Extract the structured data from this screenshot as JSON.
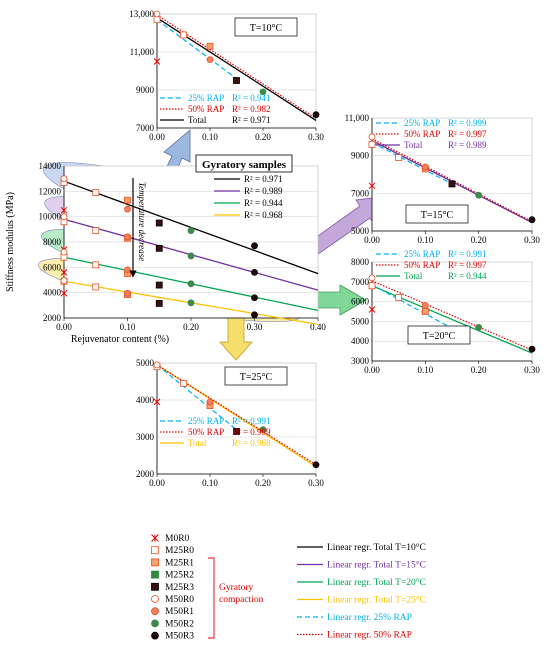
{
  "colors": {
    "black": "#000000",
    "purple": "#7030a0",
    "green": "#00a550",
    "yellow": "#ffc000",
    "cyan": "#00b0f0",
    "red": "#e00000",
    "m25_fill": "#f4a06a",
    "m25_edge": "#e85020",
    "m25r2_fill": "#2e8b3e",
    "m25r3_fill": "#3a1010",
    "m50r1_fill": "#f08060",
    "m50r2_fill": "#3d8a4a",
    "m50r3_fill": "#200808",
    "ell_blue": "#9db8e0",
    "ell_purple": "#c4a8dc",
    "ell_green": "#7fd89a",
    "ell_yellow": "#f6de6a"
  },
  "main": {
    "title": "Gyratory samples",
    "ylabel": "Stiffness modulus (MPa)",
    "xlabel": "Rejuvenator content (%)",
    "annotation": "Temperature decrease",
    "r2": [
      "R² = 0.971",
      "R² = 0.989",
      "R² = 0.944",
      "R² = 0.968"
    ]
  },
  "legend": {
    "markers": [
      "M0R0",
      "M25R0",
      "M25R1",
      "M25R2",
      "M25R3",
      "M50R0",
      "M50R1",
      "M50R2",
      "M50R3"
    ],
    "gyratory_label_1": "Gyratory",
    "gyratory_label_2": "compaction",
    "lines": [
      "Linear regr. Total T=10°C",
      "Linear regr. Total T=15°C",
      "Linear regr. Total T=20°C",
      "Linear regr. Total T=25°C",
      "Linear regr. 25% RAP",
      "Linear regr. 50% RAP"
    ]
  },
  "chart_data": [
    {
      "id": "main",
      "type": "scatter",
      "xlabel": "Rejuvenator content (%)",
      "ylabel": "Stiffness modulus (MPa)",
      "xlim": [
        0.0,
        0.4
      ],
      "ylim": [
        2000,
        14000
      ],
      "xticks": [
        "0.00",
        "0.10",
        "0.20",
        "0.30",
        "0.40"
      ],
      "yticks": [
        "2000",
        "4000",
        "6000",
        "8000",
        "10000",
        "12000",
        "14000"
      ],
      "series": [
        {
          "name": "T=10°C",
          "r2": 0.971,
          "fit": [
            [
              0,
              12800
            ],
            [
              0.4,
              5500
            ]
          ],
          "points": [
            [
              "M0R0",
              0,
              10500
            ],
            [
              "M25R0",
              0,
              12700
            ],
            [
              "M25R0",
              0.05,
              11900
            ],
            [
              "M25R1",
              0.1,
              11300
            ],
            [
              "M25R3",
              0.15,
              9500
            ],
            [
              "M50R0",
              0,
              13000
            ],
            [
              "M50R1",
              0.1,
              10600
            ],
            [
              "M50R2",
              0.2,
              8900
            ],
            [
              "M50R3",
              0.3,
              7700
            ]
          ]
        },
        {
          "name": "T=15°C",
          "r2": 0.989,
          "fit": [
            [
              0,
              9800
            ],
            [
              0.4,
              4200
            ]
          ],
          "points": [
            [
              "M0R0",
              0,
              7400
            ],
            [
              "M25R0",
              0,
              9600
            ],
            [
              "M25R0",
              0.05,
              8900
            ],
            [
              "M25R1",
              0.1,
              8300
            ],
            [
              "M25R3",
              0.15,
              7500
            ],
            [
              "M50R0",
              0,
              10000
            ],
            [
              "M50R1",
              0.1,
              8400
            ],
            [
              "M50R2",
              0.2,
              6900
            ],
            [
              "M50R3",
              0.3,
              5600
            ]
          ]
        },
        {
          "name": "T=20°C",
          "r2": 0.944,
          "fit": [
            [
              0,
              6800
            ],
            [
              0.4,
              2600
            ]
          ],
          "points": [
            [
              "M0R0",
              0,
              5600
            ],
            [
              "M25R0",
              0,
              6800
            ],
            [
              "M25R0",
              0.05,
              6200
            ],
            [
              "M25R1",
              0.1,
              5500
            ],
            [
              "M25R3",
              0.15,
              4600
            ],
            [
              "M50R0",
              0,
              7200
            ],
            [
              "M50R1",
              0.1,
              5800
            ],
            [
              "M50R2",
              0.2,
              4700
            ],
            [
              "M50R3",
              0.3,
              3600
            ]
          ]
        },
        {
          "name": "T=25°C",
          "r2": 0.968,
          "fit": [
            [
              0,
              4900
            ],
            [
              0.4,
              1500
            ]
          ],
          "points": [
            [
              "M0R0",
              0,
              3950
            ],
            [
              "M25R0",
              0,
              4900
            ],
            [
              "M25R0",
              0.05,
              4450
            ],
            [
              "M25R1",
              0.1,
              3850
            ],
            [
              "M25R3",
              0.15,
              3150
            ],
            [
              "M50R0",
              0,
              4950
            ],
            [
              "M50R1",
              0.1,
              3950
            ],
            [
              "M50R2",
              0.2,
              3200
            ],
            [
              "M50R3",
              0.3,
              2250
            ]
          ]
        }
      ]
    },
    {
      "id": "p10",
      "type": "scatter",
      "title": "T=10°C",
      "xlim": [
        0.0,
        0.3
      ],
      "ylim": [
        7000,
        13000
      ],
      "xticks": [
        "0.00",
        "0.10",
        "0.20",
        "0.30"
      ],
      "yticks": [
        "7000",
        "9000",
        "11,000",
        "13,000"
      ],
      "fits": {
        "rap25": [
          [
            0,
            12700
          ],
          [
            0.15,
            9600
          ]
        ],
        "rap50": [
          [
            0,
            12950
          ],
          [
            0.3,
            7500
          ]
        ],
        "total": [
          [
            0,
            12800
          ],
          [
            0.3,
            7400
          ]
        ]
      },
      "legend": [
        {
          "text": "25% RAP",
          "r2": "R² = 0.941"
        },
        {
          "text": "50% RAP",
          "r2": "R² = 0.982"
        },
        {
          "text": "Total",
          "r2": "R² = 0.971"
        }
      ],
      "points": [
        [
          "M0R0",
          0,
          10500
        ],
        [
          "M25R0",
          0,
          12700
        ],
        [
          "M25R0",
          0.05,
          11900
        ],
        [
          "M25R1",
          0.1,
          11300
        ],
        [
          "M25R3",
          0.15,
          9500
        ],
        [
          "M50R0",
          0,
          13000
        ],
        [
          "M50R1",
          0.1,
          10600
        ],
        [
          "M50R2",
          0.2,
          8900
        ],
        [
          "M50R3",
          0.3,
          7700
        ]
      ]
    },
    {
      "id": "p15",
      "type": "scatter",
      "title": "T=15°C",
      "xlim": [
        0.0,
        0.3
      ],
      "ylim": [
        5000,
        11000
      ],
      "xticks": [
        "0.00",
        "0.10",
        "0.20",
        "0.30"
      ],
      "yticks": [
        "5000",
        "7000",
        "9000",
        "11,000"
      ],
      "fits": {
        "rap25": [
          [
            0,
            9700
          ],
          [
            0.15,
            7500
          ]
        ],
        "rap50": [
          [
            0,
            9900
          ],
          [
            0.3,
            5500
          ]
        ],
        "total": [
          [
            0,
            9800
          ],
          [
            0.3,
            5450
          ]
        ]
      },
      "legend": [
        {
          "text": "25% RAP",
          "r2": "R² = 0.999"
        },
        {
          "text": "50% RAP",
          "r2": "R² = 0.997"
        },
        {
          "text": "Total",
          "r2": "R² = 0.989"
        }
      ],
      "points": [
        [
          "M0R0",
          0,
          7400
        ],
        [
          "M25R0",
          0,
          9600
        ],
        [
          "M25R0",
          0.05,
          8900
        ],
        [
          "M25R1",
          0.1,
          8300
        ],
        [
          "M25R3",
          0.15,
          7500
        ],
        [
          "M50R0",
          0,
          10000
        ],
        [
          "M50R1",
          0.1,
          8400
        ],
        [
          "M50R2",
          0.2,
          6900
        ],
        [
          "M50R3",
          0.3,
          5600
        ]
      ]
    },
    {
      "id": "p20",
      "type": "scatter",
      "title": "T=20°C",
      "xlim": [
        0.0,
        0.3
      ],
      "ylim": [
        3000,
        8000
      ],
      "xticks": [
        "0.00",
        "0.10",
        "0.20",
        "0.30"
      ],
      "yticks": [
        "3000",
        "4000",
        "5000",
        "6000",
        "7000",
        "8000"
      ],
      "fits": {
        "rap25": [
          [
            0,
            6850
          ],
          [
            0.15,
            4650
          ]
        ],
        "rap50": [
          [
            0,
            7050
          ],
          [
            0.3,
            3550
          ]
        ],
        "total": [
          [
            0,
            6800
          ],
          [
            0.3,
            3400
          ]
        ]
      },
      "legend": [
        {
          "text": "25% RAP",
          "r2": "R² = 0.991"
        },
        {
          "text": "50% RAP",
          "r2": "R² = 0.997"
        },
        {
          "text": "Total",
          "r2": "R² = 0.944"
        }
      ],
      "points": [
        [
          "M0R0",
          0,
          5600
        ],
        [
          "M25R0",
          0,
          6800
        ],
        [
          "M25R0",
          0.05,
          6200
        ],
        [
          "M25R1",
          0.1,
          5500
        ],
        [
          "M25R3",
          0.15,
          4600
        ],
        [
          "M50R0",
          0,
          7200
        ],
        [
          "M50R1",
          0.1,
          5800
        ],
        [
          "M50R2",
          0.2,
          4700
        ],
        [
          "M50R3",
          0.3,
          3600
        ]
      ]
    },
    {
      "id": "p25",
      "type": "scatter",
      "title": "T=25°C",
      "xlim": [
        0.0,
        0.3
      ],
      "ylim": [
        2000,
        5000
      ],
      "xticks": [
        "0.00",
        "0.10",
        "0.20",
        "0.30"
      ],
      "yticks": [
        "2000",
        "3000",
        "4000",
        "5000"
      ],
      "fits": {
        "rap25": [
          [
            0,
            4950
          ],
          [
            0.15,
            3200
          ]
        ],
        "rap50": [
          [
            0,
            4950
          ],
          [
            0.3,
            2250
          ]
        ],
        "total": [
          [
            0,
            4950
          ],
          [
            0.3,
            2200
          ]
        ]
      },
      "legend": [
        {
          "text": "25% RAP",
          "r2": "R² = 0.991"
        },
        {
          "text": "50% RAP",
          "r2": "R² = 0.999"
        },
        {
          "text": "Total",
          "r2": "R² = 0.968"
        }
      ],
      "points": [
        [
          "M0R0",
          0,
          3950
        ],
        [
          "M25R0",
          0,
          4900
        ],
        [
          "M25R0",
          0.05,
          4450
        ],
        [
          "M25R1",
          0.1,
          3850
        ],
        [
          "M25R3",
          0.15,
          3150
        ],
        [
          "M50R0",
          0,
          4950
        ],
        [
          "M50R1",
          0.1,
          3950
        ],
        [
          "M50R2",
          0.2,
          3200
        ],
        [
          "M50R3",
          0.3,
          2250
        ]
      ]
    }
  ]
}
